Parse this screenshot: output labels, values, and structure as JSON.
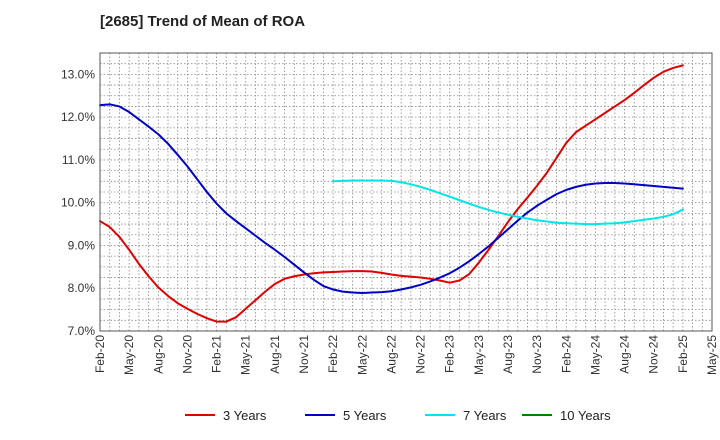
{
  "chart_data": {
    "type": "line",
    "title": "[2685]  Trend of Mean of ROA",
    "xlabel": "",
    "ylabel": "",
    "x_ticks": [
      "Feb-20",
      "May-20",
      "Aug-20",
      "Nov-20",
      "Feb-21",
      "May-21",
      "Aug-21",
      "Nov-21",
      "Feb-22",
      "May-22",
      "Aug-22",
      "Nov-22",
      "Feb-23",
      "May-23",
      "Aug-23",
      "Nov-23",
      "Feb-24",
      "May-24",
      "Aug-24",
      "Nov-24",
      "Feb-25",
      "May-25"
    ],
    "y_ticks": [
      "7.0%",
      "8.0%",
      "9.0%",
      "10.0%",
      "11.0%",
      "12.0%",
      "13.0%"
    ],
    "ylim": [
      7.0,
      13.5
    ],
    "grid": true,
    "legend_position": "bottom",
    "series": [
      {
        "name": "3 Years",
        "color": "#e00000",
        "points": [
          [
            "Feb-20",
            9.57
          ],
          [
            "Mar-20",
            9.43
          ],
          [
            "Apr-20",
            9.2
          ],
          [
            "May-20",
            8.9
          ],
          [
            "Jun-20",
            8.57
          ],
          [
            "Jul-20",
            8.28
          ],
          [
            "Aug-20",
            8.02
          ],
          [
            "Sep-20",
            7.82
          ],
          [
            "Oct-20",
            7.65
          ],
          [
            "Nov-20",
            7.52
          ],
          [
            "Dec-20",
            7.4
          ],
          [
            "Jan-21",
            7.3
          ],
          [
            "Feb-21",
            7.22
          ],
          [
            "Mar-21",
            7.22
          ],
          [
            "Apr-21",
            7.32
          ],
          [
            "May-21",
            7.52
          ],
          [
            "Jun-21",
            7.72
          ],
          [
            "Jul-21",
            7.92
          ],
          [
            "Aug-21",
            8.1
          ],
          [
            "Sep-21",
            8.22
          ],
          [
            "Oct-21",
            8.28
          ],
          [
            "Nov-21",
            8.32
          ],
          [
            "Dec-21",
            8.35
          ],
          [
            "Jan-22",
            8.37
          ],
          [
            "Feb-22",
            8.38
          ],
          [
            "Mar-22",
            8.39
          ],
          [
            "Apr-22",
            8.4
          ],
          [
            "May-22",
            8.4
          ],
          [
            "Jun-22",
            8.39
          ],
          [
            "Jul-22",
            8.36
          ],
          [
            "Aug-22",
            8.32
          ],
          [
            "Sep-22",
            8.29
          ],
          [
            "Oct-22",
            8.27
          ],
          [
            "Nov-22",
            8.25
          ],
          [
            "Dec-22",
            8.22
          ],
          [
            "Jan-23",
            8.18
          ],
          [
            "Feb-23",
            8.13
          ],
          [
            "Mar-23",
            8.18
          ],
          [
            "Apr-23",
            8.33
          ],
          [
            "May-23",
            8.6
          ],
          [
            "Jun-23",
            8.9
          ],
          [
            "Jul-23",
            9.22
          ],
          [
            "Aug-23",
            9.55
          ],
          [
            "Sep-23",
            9.85
          ],
          [
            "Oct-23",
            10.12
          ],
          [
            "Nov-23",
            10.4
          ],
          [
            "Dec-23",
            10.7
          ],
          [
            "Jan-24",
            11.05
          ],
          [
            "Feb-24",
            11.4
          ],
          [
            "Mar-24",
            11.65
          ],
          [
            "Apr-24",
            11.8
          ],
          [
            "May-24",
            11.95
          ],
          [
            "Jun-24",
            12.1
          ],
          [
            "Jul-24",
            12.25
          ],
          [
            "Aug-24",
            12.4
          ],
          [
            "Sep-24",
            12.57
          ],
          [
            "Oct-24",
            12.75
          ],
          [
            "Nov-24",
            12.92
          ],
          [
            "Dec-24",
            13.06
          ],
          [
            "Jan-25",
            13.15
          ],
          [
            "Feb-25",
            13.21
          ]
        ]
      },
      {
        "name": "5 Years",
        "color": "#0000c8",
        "points": [
          [
            "Feb-20",
            12.28
          ],
          [
            "Mar-20",
            12.3
          ],
          [
            "Apr-20",
            12.25
          ],
          [
            "May-20",
            12.12
          ],
          [
            "Jun-20",
            11.95
          ],
          [
            "Jul-20",
            11.78
          ],
          [
            "Aug-20",
            11.6
          ],
          [
            "Sep-20",
            11.38
          ],
          [
            "Oct-20",
            11.12
          ],
          [
            "Nov-20",
            10.85
          ],
          [
            "Dec-20",
            10.55
          ],
          [
            "Jan-21",
            10.25
          ],
          [
            "Feb-21",
            9.98
          ],
          [
            "Mar-21",
            9.75
          ],
          [
            "Apr-21",
            9.57
          ],
          [
            "May-21",
            9.4
          ],
          [
            "Jun-21",
            9.23
          ],
          [
            "Jul-21",
            9.06
          ],
          [
            "Aug-21",
            8.9
          ],
          [
            "Sep-21",
            8.73
          ],
          [
            "Oct-21",
            8.55
          ],
          [
            "Nov-21",
            8.37
          ],
          [
            "Dec-21",
            8.2
          ],
          [
            "Jan-22",
            8.05
          ],
          [
            "Feb-22",
            7.97
          ],
          [
            "Mar-22",
            7.92
          ],
          [
            "Apr-22",
            7.9
          ],
          [
            "May-22",
            7.89
          ],
          [
            "Jun-22",
            7.9
          ],
          [
            "Jul-22",
            7.91
          ],
          [
            "Aug-22",
            7.93
          ],
          [
            "Sep-22",
            7.97
          ],
          [
            "Oct-22",
            8.02
          ],
          [
            "Nov-22",
            8.08
          ],
          [
            "Dec-22",
            8.16
          ],
          [
            "Jan-23",
            8.25
          ],
          [
            "Feb-23",
            8.35
          ],
          [
            "Mar-23",
            8.48
          ],
          [
            "Apr-23",
            8.63
          ],
          [
            "May-23",
            8.8
          ],
          [
            "Jun-23",
            8.98
          ],
          [
            "Jul-23",
            9.18
          ],
          [
            "Aug-23",
            9.38
          ],
          [
            "Sep-23",
            9.58
          ],
          [
            "Oct-23",
            9.77
          ],
          [
            "Nov-23",
            9.93
          ],
          [
            "Dec-23",
            10.07
          ],
          [
            "Jan-24",
            10.2
          ],
          [
            "Feb-24",
            10.3
          ],
          [
            "Mar-24",
            10.37
          ],
          [
            "Apr-24",
            10.42
          ],
          [
            "May-24",
            10.45
          ],
          [
            "Jun-24",
            10.46
          ],
          [
            "Jul-24",
            10.46
          ],
          [
            "Aug-24",
            10.45
          ],
          [
            "Sep-24",
            10.43
          ],
          [
            "Oct-24",
            10.41
          ],
          [
            "Nov-24",
            10.39
          ],
          [
            "Dec-24",
            10.37
          ],
          [
            "Jan-25",
            10.35
          ],
          [
            "Feb-25",
            10.33
          ]
        ]
      },
      {
        "name": "7 Years",
        "color": "#00e6e6",
        "points": [
          [
            "Feb-22",
            10.5
          ],
          [
            "Mar-22",
            10.51
          ],
          [
            "Apr-22",
            10.52
          ],
          [
            "May-22",
            10.52
          ],
          [
            "Jun-22",
            10.52
          ],
          [
            "Jul-22",
            10.52
          ],
          [
            "Aug-22",
            10.51
          ],
          [
            "Sep-22",
            10.48
          ],
          [
            "Oct-22",
            10.43
          ],
          [
            "Nov-22",
            10.37
          ],
          [
            "Dec-22",
            10.3
          ],
          [
            "Jan-23",
            10.22
          ],
          [
            "Feb-23",
            10.14
          ],
          [
            "Mar-23",
            10.06
          ],
          [
            "Apr-23",
            9.98
          ],
          [
            "May-23",
            9.9
          ],
          [
            "Jun-23",
            9.83
          ],
          [
            "Jul-23",
            9.77
          ],
          [
            "Aug-23",
            9.72
          ],
          [
            "Sep-23",
            9.67
          ],
          [
            "Oct-23",
            9.63
          ],
          [
            "Nov-23",
            9.59
          ],
          [
            "Dec-23",
            9.56
          ],
          [
            "Jan-24",
            9.53
          ],
          [
            "Feb-24",
            9.52
          ],
          [
            "Mar-24",
            9.51
          ],
          [
            "Apr-24",
            9.5
          ],
          [
            "May-24",
            9.5
          ],
          [
            "Jun-24",
            9.51
          ],
          [
            "Jul-24",
            9.52
          ],
          [
            "Aug-24",
            9.54
          ],
          [
            "Sep-24",
            9.57
          ],
          [
            "Oct-24",
            9.6
          ],
          [
            "Nov-24",
            9.63
          ],
          [
            "Dec-24",
            9.67
          ],
          [
            "Jan-25",
            9.73
          ],
          [
            "Feb-25",
            9.84
          ]
        ]
      },
      {
        "name": "10 Years",
        "color": "#008000",
        "points": []
      }
    ]
  }
}
